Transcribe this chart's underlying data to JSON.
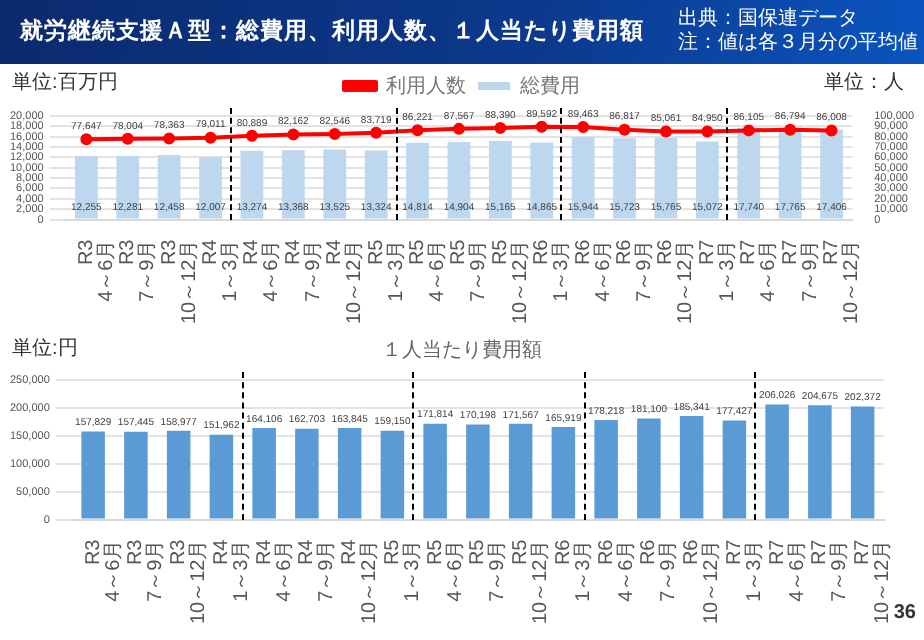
{
  "chart_data": [
    {
      "type": "bar",
      "title": "就労継続支援Ａ型：総費用、利用人数、１人当たり費用額",
      "ylabel": "単位:百万円",
      "y2label": "単位：人",
      "annotations": [
        "出典：国保連データ",
        "注：値は各３月分の平均値"
      ],
      "categories": [
        "R3\n4～6月",
        "R3\n7～9月",
        "R3\n10～12月",
        "R4\n1～3月",
        "R4\n4～6月",
        "R4\n7～9月",
        "R4\n10～12月",
        "R5\n1～3月",
        "R5\n4～6月",
        "R5\n7～9月",
        "R5\n10～12月",
        "R6\n1～3月",
        "R6\n4～6月",
        "R6\n7～9月",
        "R6\n10～12月",
        "R7\n1～3月",
        "R7\n4～6月",
        "R7\n7～9月",
        "R7\n10～12月"
      ],
      "series": [
        {
          "name": "総費用",
          "color": "#bdd7ee",
          "values": [
            12255,
            12281,
            12458,
            12007,
            13274,
            13368,
            13525,
            13324,
            14814,
            14904,
            15165,
            14865,
            15944,
            15723,
            15765,
            15072,
            17740,
            17765,
            17406
          ],
          "value_labels": [
            "12,255",
            "12,281",
            "12,458",
            "12,007",
            "13,274",
            "13,368",
            "13,525",
            "13,324",
            "14,814",
            "14,904",
            "15,165",
            "14,865",
            "15,944",
            "15,723",
            "15,765",
            "15,072",
            "17,740",
            "17,765",
            "17,406"
          ]
        },
        {
          "name": "利用人数",
          "type": "line",
          "axis": "y2",
          "color": "#ff0000",
          "values": [
            77647,
            78004,
            78363,
            79011,
            80889,
            82162,
            82546,
            83719,
            86221,
            87567,
            88390,
            89592,
            89463,
            86817,
            85061,
            84950,
            86105,
            86794,
            86008
          ],
          "value_labels": [
            "77,647",
            "78,004",
            "78,363",
            "79,011",
            "80,889",
            "82,162",
            "82,546",
            "83,719",
            "86,221",
            "87,567",
            "88,390",
            "89,592",
            "89,463",
            "86,817",
            "85,061",
            "84,950",
            "86,105",
            "86,794",
            "86,008"
          ]
        }
      ],
      "ylim": [
        0,
        20000
      ],
      "yticks": [
        {
          "value": 0,
          "label": "0"
        },
        {
          "value": 2000,
          "label": "2,000"
        },
        {
          "value": 4000,
          "label": "4,000"
        },
        {
          "value": 6000,
          "label": "6,000"
        },
        {
          "value": 8000,
          "label": "8,000"
        },
        {
          "value": 10000,
          "label": "10,000"
        },
        {
          "value": 12000,
          "label": "12,000"
        },
        {
          "value": 14000,
          "label": "14,000"
        },
        {
          "value": 16000,
          "label": "16,000"
        },
        {
          "value": 18000,
          "label": "18,000"
        },
        {
          "value": 20000,
          "label": "20,000"
        }
      ],
      "y2lim": [
        0,
        100000
      ],
      "y2ticks": [
        {
          "value": 0,
          "label": "0"
        },
        {
          "value": 10000,
          "label": "10,000"
        },
        {
          "value": 20000,
          "label": "20,000"
        },
        {
          "value": 30000,
          "label": "30,000"
        },
        {
          "value": 40000,
          "label": "40,000"
        },
        {
          "value": 50000,
          "label": "50,000"
        },
        {
          "value": 60000,
          "label": "60,000"
        },
        {
          "value": 70000,
          "label": "70,000"
        },
        {
          "value": 80000,
          "label": "80,000"
        },
        {
          "value": 90000,
          "label": "90,000"
        },
        {
          "value": 100000,
          "label": "100,000"
        }
      ],
      "grid": "y",
      "legend": "top",
      "marker": "circle",
      "line_style": "solid"
    },
    {
      "type": "bar",
      "title": "１人当たり費用額",
      "ylabel": "単位:円",
      "annotations": [
        "36"
      ],
      "categories": [
        "R3\n4～6月",
        "R3\n7～9月",
        "R3\n10～12月",
        "R4\n1～3月",
        "R4\n4～6月",
        "R4\n7～9月",
        "R4\n10～12月",
        "R5\n1～3月",
        "R5\n4～6月",
        "R5\n7～9月",
        "R5\n10～12月",
        "R6\n1～3月",
        "R6\n4～6月",
        "R6\n7～9月",
        "R6\n10～12月",
        "R7\n1～3月",
        "R7\n4～6月",
        "R7\n7～9月",
        "R7\n10～12月"
      ],
      "series": [
        {
          "color": "#5b9bd5",
          "values": [
            157829,
            157445,
            158977,
            151962,
            164106,
            162703,
            163845,
            159150,
            171814,
            170198,
            171567,
            165919,
            178218,
            181100,
            185341,
            177427,
            206026,
            204675,
            202372
          ],
          "value_labels": [
            "157,829",
            "157,445",
            "158,977",
            "151,962",
            "164,106",
            "162,703",
            "163,845",
            "159,150",
            "171,814",
            "170,198",
            "171,567",
            "165,919",
            "178,218",
            "181,100",
            "185,341",
            "177,427",
            "206,026",
            "204,675",
            "202,372"
          ]
        }
      ],
      "ylim": [
        0,
        250000
      ],
      "yticks": [
        {
          "value": 0,
          "label": "0"
        },
        {
          "value": 50000,
          "label": "50,000"
        },
        {
          "value": 100000,
          "label": "100,000"
        },
        {
          "value": 150000,
          "label": "150,000"
        },
        {
          "value": 200000,
          "label": "200,000"
        },
        {
          "value": 250000,
          "label": "250,000"
        }
      ],
      "grid": "y"
    }
  ]
}
